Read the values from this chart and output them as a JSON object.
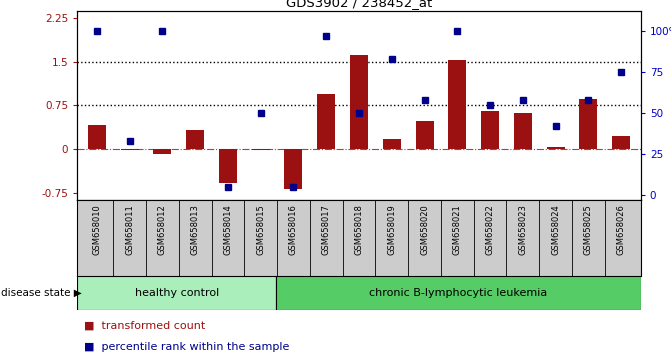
{
  "title": "GDS3902 / 238452_at",
  "samples": [
    "GSM658010",
    "GSM658011",
    "GSM658012",
    "GSM658013",
    "GSM658014",
    "GSM658015",
    "GSM658016",
    "GSM658017",
    "GSM658018",
    "GSM658019",
    "GSM658020",
    "GSM658021",
    "GSM658022",
    "GSM658023",
    "GSM658024",
    "GSM658025",
    "GSM658026"
  ],
  "bar_values": [
    0.42,
    -0.02,
    -0.08,
    0.32,
    -0.58,
    -0.02,
    -0.68,
    0.95,
    1.62,
    0.18,
    0.48,
    1.52,
    0.65,
    0.62,
    0.04,
    0.85,
    0.22
  ],
  "dot_percentiles": [
    100,
    33,
    100,
    null,
    5,
    50,
    5,
    97,
    50,
    83,
    58,
    100,
    55,
    58,
    42,
    58,
    75
  ],
  "n_healthy": 6,
  "n_total": 17,
  "group_labels": [
    "healthy control",
    "chronic B-lymphocytic leukemia"
  ],
  "bar_color": "#9B1010",
  "dot_color": "#00008B",
  "ylim_left": [
    -0.875,
    2.375
  ],
  "ylim_right": [
    -3.125,
    112.5
  ],
  "yticks_left": [
    -0.75,
    0.0,
    0.75,
    1.5,
    2.25
  ],
  "yticks_right": [
    0,
    25,
    50,
    75,
    100
  ],
  "hlines": [
    1.5,
    0.75
  ],
  "zero_line_color": "#9B1010",
  "legend_items": [
    "transformed count",
    "percentile rank within the sample"
  ],
  "background_color": "#ffffff",
  "label_disease_state": "disease state",
  "healthy_color": "#AAEEBB",
  "leukemia_color": "#55CC66",
  "tick_bg_color": "#CCCCCC"
}
